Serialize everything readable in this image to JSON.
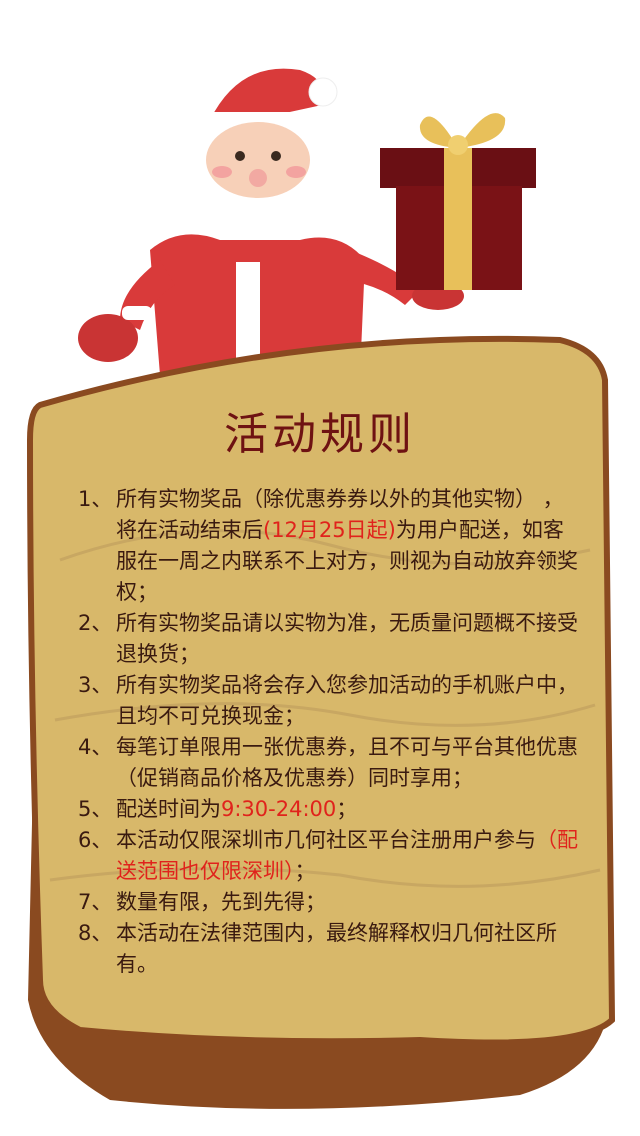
{
  "title": "活动规则",
  "colors": {
    "accent_red": "#e0231c",
    "title_color": "#6e1212",
    "scroll_bg": "#d8b86a",
    "scroll_edge": "#8a4a20",
    "gift_red": "#7a1216",
    "ribbon_gold": "#e8c05a",
    "santa_red": "#d93a3a"
  },
  "illustrations": {
    "santa": "santa-claus-illustration",
    "gift": "gift-box-icon",
    "scroll": "parchment-scroll"
  },
  "rules": [
    {
      "num": "1、",
      "before": "所有实物奖品（除优惠券券以外的其他实物）  ，将在活动结束后",
      "highlight": "(12月25日起)",
      "after": "为用户配送，如客服在一周之内联系不上对方，则视为自动放弃领奖权；"
    },
    {
      "num": "2、",
      "before": "所有实物奖品请以实物为准，无质量问题概不接受退换货；",
      "highlight": "",
      "after": ""
    },
    {
      "num": "3、",
      "before": "所有实物奖品将会存入您参加活动的手机账户中，且均不可兑换现金；",
      "highlight": "",
      "after": ""
    },
    {
      "num": "4、",
      "before": "每笔订单限用一张优惠券，且不可与平台其他优惠（促销商品价格及优惠券）同时享用；",
      "highlight": "",
      "after": ""
    },
    {
      "num": "5、",
      "before": "配送时间为",
      "highlight": "9:30-24:00",
      "after": "；"
    },
    {
      "num": "6、",
      "before": "本活动仅限深圳市几何社区平台注册用户参与",
      "highlight": "（配送范围也仅限深圳）",
      "after": "；"
    },
    {
      "num": "7、",
      "before": "数量有限，先到先得；",
      "highlight": "",
      "after": ""
    },
    {
      "num": "8、",
      "before": "本活动在法律范围内，最终解释权归几何社区所有。",
      "highlight": "",
      "after": ""
    }
  ]
}
